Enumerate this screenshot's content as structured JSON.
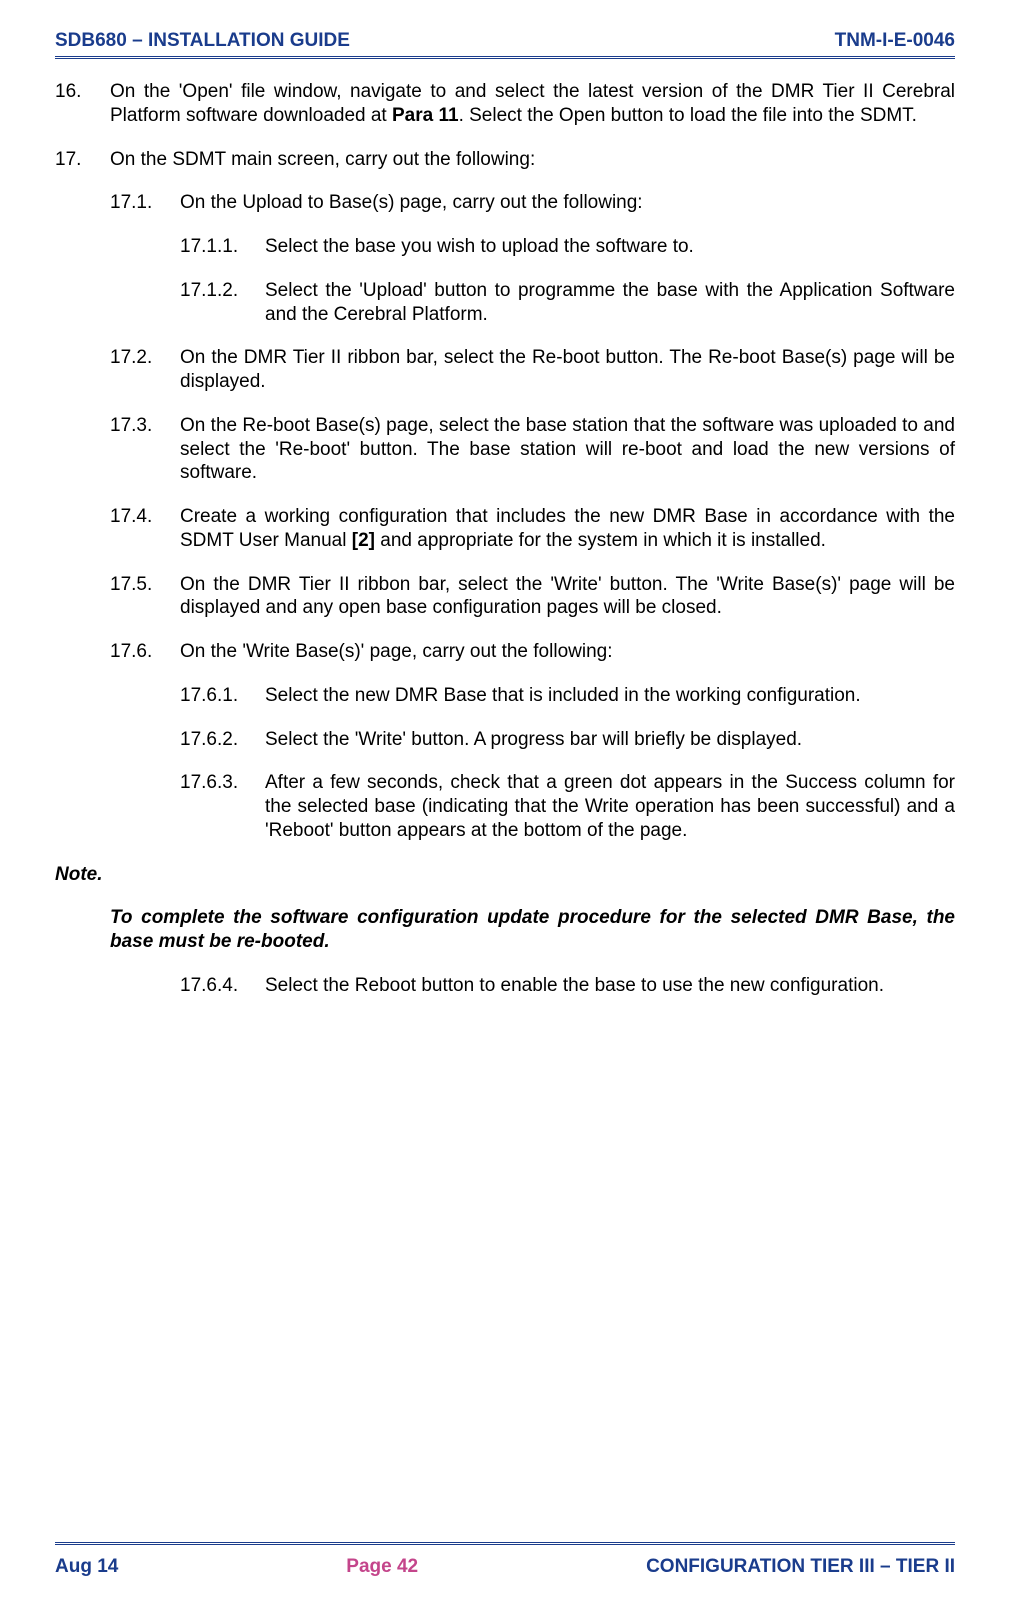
{
  "colors": {
    "header_text": "#1a3c8c",
    "footer_text": "#1a3c8c",
    "footer_center": "#c4458b",
    "body_text": "#000000",
    "rule": "#1a3c8c",
    "background": "#ffffff"
  },
  "typography": {
    "family": "Arial",
    "body_size_pt": 14,
    "header_size_pt": 14,
    "line_height": 1.25
  },
  "header": {
    "left": "SDB680 – INSTALLATION GUIDE",
    "right": "TNM-I-E-0046"
  },
  "footer": {
    "left": "Aug 14",
    "center": "Page 42",
    "right": "CONFIGURATION TIER III – TIER II"
  },
  "items": {
    "p16": {
      "num": "16.",
      "text_a": "On the 'Open' file window, navigate to and select the latest version of the DMR Tier II Cerebral Platform software downloaded at ",
      "bold": "Para 11",
      "text_b": ".  Select the Open button to load the file into the SDMT."
    },
    "p17": {
      "num": "17.",
      "text": "On the SDMT main screen, carry out the following:"
    },
    "p171": {
      "num": "17.1.",
      "text": "On the Upload to Base(s) page, carry out the following:"
    },
    "p1711": {
      "num": "17.1.1.",
      "text": "Select the base you wish to upload the software to."
    },
    "p1712": {
      "num": "17.1.2.",
      "text": "Select the 'Upload' button to programme the base with the Application Software and the Cerebral Platform."
    },
    "p172": {
      "num": "17.2.",
      "text": "On the DMR Tier II ribbon bar, select the Re-boot button.  The Re-boot Base(s) page will be displayed."
    },
    "p173": {
      "num": "17.3.",
      "text": "On the Re-boot Base(s) page, select the base station that the software was uploaded to and select the 'Re-boot' button.  The base station will re-boot and load the new versions of software."
    },
    "p174": {
      "num": "17.4.",
      "text_a": "Create a working configuration that includes the new DMR Base in accordance with the SDMT User Manual ",
      "bold": "[2]",
      "text_b": " and appropriate for the system in which it is installed."
    },
    "p175": {
      "num": "17.5.",
      "text": "On the DMR Tier II ribbon bar, select the 'Write' button.  The 'Write Base(s)' page will be displayed and any open base configuration pages will be closed."
    },
    "p176": {
      "num": "17.6.",
      "text": "On the 'Write Base(s)' page, carry out the following:"
    },
    "p1761": {
      "num": "17.6.1.",
      "text": "Select the new DMR Base that is included in the working configuration."
    },
    "p1762": {
      "num": "17.6.2.",
      "text": "Select the 'Write' button.  A progress bar will briefly be displayed."
    },
    "p1763": {
      "num": "17.6.3.",
      "text": "After a few seconds, check that a green dot appears in the Success column for the selected base (indicating that the Write operation has been successful) and a 'Reboot' button appears at the bottom of the page."
    },
    "note_label": "Note.",
    "note_body": "To complete the software configuration update procedure for the selected DMR Base, the base must be re-booted.",
    "p1764": {
      "num": "17.6.4.",
      "text": "Select the Reboot button to enable the base to use the new configuration."
    }
  }
}
